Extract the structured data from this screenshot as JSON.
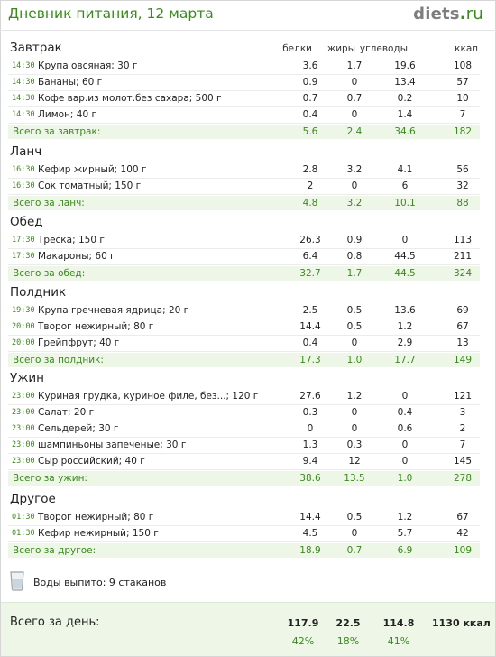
{
  "header": {
    "title": "Дневник питания, 12 марта",
    "logo_main": "diets",
    "logo_dot": ".",
    "logo_tld": "ru"
  },
  "columns": {
    "protein": "белки",
    "fat": "жиры",
    "carbs": "углеводы",
    "kcal": "ккал"
  },
  "sections": [
    {
      "title": "Завтрак",
      "rows": [
        {
          "time": "14:30",
          "food": "Крупа овсяная; 30 г",
          "p": "3.6",
          "f": "1.7",
          "c": "19.6",
          "k": "108"
        },
        {
          "time": "14:30",
          "food": "Бананы; 60 г",
          "p": "0.9",
          "f": "0",
          "c": "13.4",
          "k": "57"
        },
        {
          "time": "14:30",
          "food": "Кофе вар.из молот.без сахара; 500 г",
          "p": "0.7",
          "f": "0.7",
          "c": "0.2",
          "k": "10"
        },
        {
          "time": "14:30",
          "food": "Лимон; 40 г",
          "p": "0.4",
          "f": "0",
          "c": "1.4",
          "k": "7"
        }
      ],
      "total": {
        "label": "Всего за завтрак:",
        "p": "5.6",
        "f": "2.4",
        "c": "34.6",
        "k": "182"
      }
    },
    {
      "title": "Ланч",
      "rows": [
        {
          "time": "16:30",
          "food": "Кефир жирный; 100 г",
          "p": "2.8",
          "f": "3.2",
          "c": "4.1",
          "k": "56"
        },
        {
          "time": "16:30",
          "food": "Сок томатный; 150 г",
          "p": "2",
          "f": "0",
          "c": "6",
          "k": "32"
        }
      ],
      "total": {
        "label": "Всего за ланч:",
        "p": "4.8",
        "f": "3.2",
        "c": "10.1",
        "k": "88"
      }
    },
    {
      "title": "Обед",
      "rows": [
        {
          "time": "17:30",
          "food": "Треска; 150 г",
          "p": "26.3",
          "f": "0.9",
          "c": "0",
          "k": "113"
        },
        {
          "time": "17:30",
          "food": "Макароны; 60 г",
          "p": "6.4",
          "f": "0.8",
          "c": "44.5",
          "k": "211"
        }
      ],
      "total": {
        "label": "Всего за обед:",
        "p": "32.7",
        "f": "1.7",
        "c": "44.5",
        "k": "324"
      }
    },
    {
      "title": "Полдник",
      "rows": [
        {
          "time": "19:30",
          "food": "Крупа гречневая ядрица; 20 г",
          "p": "2.5",
          "f": "0.5",
          "c": "13.6",
          "k": "69"
        },
        {
          "time": "20:00",
          "food": "Творог нежирный; 80 г",
          "p": "14.4",
          "f": "0.5",
          "c": "1.2",
          "k": "67"
        },
        {
          "time": "20:00",
          "food": "Грейпфрут; 40 г",
          "p": "0.4",
          "f": "0",
          "c": "2.9",
          "k": "13"
        }
      ],
      "total": {
        "label": "Всего за полдник:",
        "p": "17.3",
        "f": "1.0",
        "c": "17.7",
        "k": "149"
      }
    },
    {
      "title": "Ужин",
      "rows": [
        {
          "time": "23:00",
          "food": "Куриная грудка, куриное филе, без...; 120 г",
          "p": "27.6",
          "f": "1.2",
          "c": "0",
          "k": "121"
        },
        {
          "time": "23:00",
          "food": "Салат; 20 г",
          "p": "0.3",
          "f": "0",
          "c": "0.4",
          "k": "3"
        },
        {
          "time": "23:00",
          "food": "Сельдерей; 30 г",
          "p": "0",
          "f": "0",
          "c": "0.6",
          "k": "2"
        },
        {
          "time": "23:00",
          "food": "шампиньоны запеченые; 30 г",
          "p": "1.3",
          "f": "0.3",
          "c": "0",
          "k": "7"
        },
        {
          "time": "23:00",
          "food": "Сыр российский; 40 г",
          "p": "9.4",
          "f": "12",
          "c": "0",
          "k": "145"
        }
      ],
      "total": {
        "label": "Всего за ужин:",
        "p": "38.6",
        "f": "13.5",
        "c": "1.0",
        "k": "278"
      }
    },
    {
      "title": "Другое",
      "rows": [
        {
          "time": "01:30",
          "food": "Творог нежирный; 80 г",
          "p": "14.4",
          "f": "0.5",
          "c": "1.2",
          "k": "67"
        },
        {
          "time": "01:30",
          "food": "Кефир нежирный; 150 г",
          "p": "4.5",
          "f": "0",
          "c": "5.7",
          "k": "42"
        }
      ],
      "total": {
        "label": "Всего за другое:",
        "p": "18.9",
        "f": "0.7",
        "c": "6.9",
        "k": "109"
      }
    }
  ],
  "water": {
    "text": "Воды выпито: 9 стаканов"
  },
  "day": {
    "label": "Всего за день:",
    "p": "117.9",
    "f": "22.5",
    "c": "114.8",
    "k": "1130 ккал",
    "p_pct": "42%",
    "f_pct": "18%",
    "c_pct": "41%"
  },
  "colors": {
    "accent": "#3a8a1c",
    "total_bg": "#eef6e8"
  }
}
